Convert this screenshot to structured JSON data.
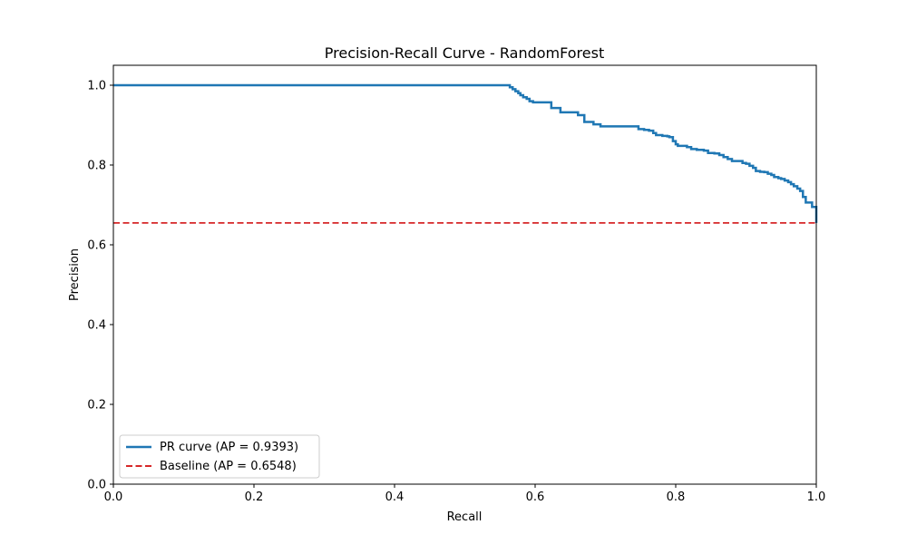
{
  "chart_data": {
    "type": "line",
    "title": "Precision-Recall Curve - RandomForest",
    "xlabel": "Recall",
    "ylabel": "Precision",
    "xlim": [
      0,
      1
    ],
    "ylim": [
      0,
      1.05
    ],
    "xticks": [
      "0.0",
      "0.2",
      "0.4",
      "0.6",
      "0.8",
      "1.0"
    ],
    "yticks": [
      "0.0",
      "0.2",
      "0.4",
      "0.6",
      "0.8",
      "1.0"
    ],
    "grid": false,
    "legend_position": "lower-left",
    "series": [
      {
        "name": "PR curve (AP = 0.9393)",
        "style": "solid",
        "color": "#1f77b4",
        "step": true,
        "points": [
          [
            0.0,
            1.0
          ],
          [
            0.561,
            1.0
          ],
          [
            0.564,
            0.995
          ],
          [
            0.568,
            0.99
          ],
          [
            0.572,
            0.985
          ],
          [
            0.576,
            0.98
          ],
          [
            0.579,
            0.975
          ],
          [
            0.583,
            0.97
          ],
          [
            0.588,
            0.966
          ],
          [
            0.592,
            0.96
          ],
          [
            0.597,
            0.957
          ],
          [
            0.62,
            0.957
          ],
          [
            0.623,
            0.943
          ],
          [
            0.633,
            0.943
          ],
          [
            0.636,
            0.932
          ],
          [
            0.658,
            0.932
          ],
          [
            0.661,
            0.925
          ],
          [
            0.667,
            0.925
          ],
          [
            0.67,
            0.908
          ],
          [
            0.68,
            0.908
          ],
          [
            0.683,
            0.902
          ],
          [
            0.69,
            0.902
          ],
          [
            0.693,
            0.897
          ],
          [
            0.744,
            0.897
          ],
          [
            0.747,
            0.89
          ],
          [
            0.755,
            0.888
          ],
          [
            0.762,
            0.886
          ],
          [
            0.768,
            0.88
          ],
          [
            0.772,
            0.875
          ],
          [
            0.781,
            0.873
          ],
          [
            0.788,
            0.872
          ],
          [
            0.791,
            0.87
          ],
          [
            0.796,
            0.86
          ],
          [
            0.8,
            0.852
          ],
          [
            0.803,
            0.848
          ],
          [
            0.814,
            0.848
          ],
          [
            0.816,
            0.845
          ],
          [
            0.822,
            0.84
          ],
          [
            0.83,
            0.838
          ],
          [
            0.84,
            0.836
          ],
          [
            0.846,
            0.83
          ],
          [
            0.855,
            0.829
          ],
          [
            0.862,
            0.825
          ],
          [
            0.868,
            0.82
          ],
          [
            0.874,
            0.815
          ],
          [
            0.88,
            0.81
          ],
          [
            0.89,
            0.81
          ],
          [
            0.895,
            0.805
          ],
          [
            0.9,
            0.803
          ],
          [
            0.905,
            0.798
          ],
          [
            0.91,
            0.793
          ],
          [
            0.914,
            0.785
          ],
          [
            0.92,
            0.783
          ],
          [
            0.926,
            0.782
          ],
          [
            0.931,
            0.778
          ],
          [
            0.936,
            0.775
          ],
          [
            0.94,
            0.77
          ],
          [
            0.946,
            0.767
          ],
          [
            0.95,
            0.765
          ],
          [
            0.955,
            0.761
          ],
          [
            0.96,
            0.757
          ],
          [
            0.964,
            0.752
          ],
          [
            0.968,
            0.747
          ],
          [
            0.973,
            0.741
          ],
          [
            0.977,
            0.735
          ],
          [
            0.981,
            0.72
          ],
          [
            0.985,
            0.706
          ],
          [
            0.992,
            0.706
          ],
          [
            0.994,
            0.695
          ],
          [
            0.998,
            0.695
          ],
          [
            1.0,
            0.6548
          ]
        ]
      },
      {
        "name": "Baseline (AP = 0.6548)",
        "style": "dashed",
        "color": "#d62728",
        "step": false,
        "points": [
          [
            0.0,
            0.6548
          ],
          [
            1.0,
            0.6548
          ]
        ]
      }
    ]
  }
}
